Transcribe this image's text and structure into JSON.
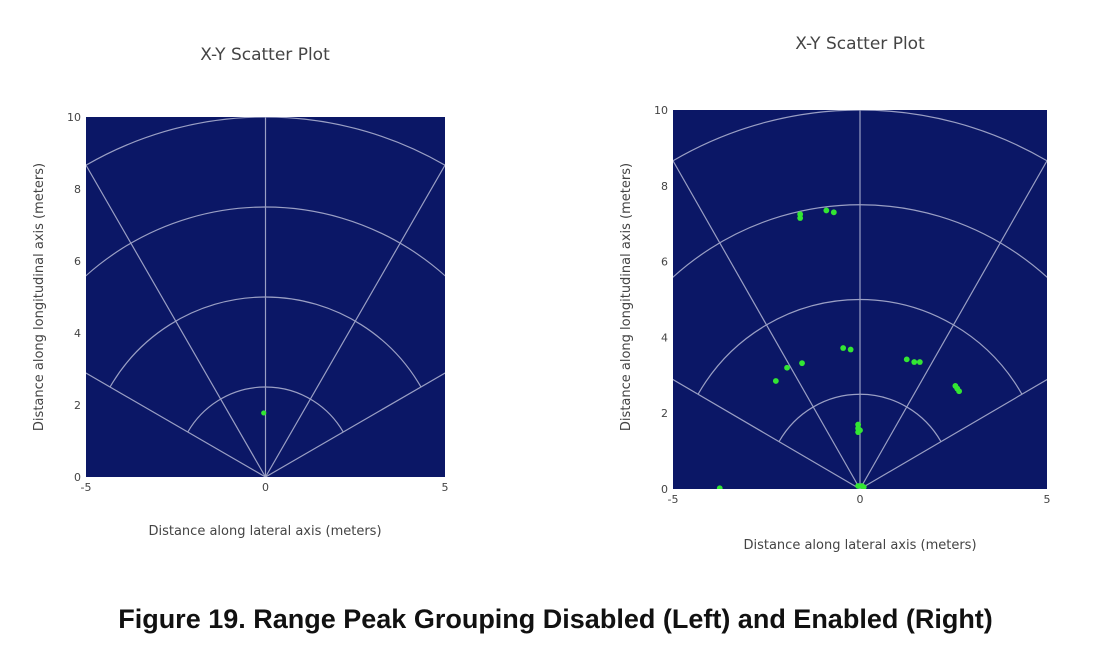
{
  "figure_caption": "Figure 19. Range Peak Grouping Disabled (Left) and Enabled (Right)",
  "colors": {
    "plot_background": "#0b1766",
    "grid": "#9a9fc4",
    "point": "#33e633",
    "text": "#444444"
  },
  "chart_data": [
    {
      "type": "scatter",
      "title": "X-Y Scatter Plot",
      "xlabel": "Distance along lateral axis (meters)",
      "ylabel": "Distance along longitudinal axis (meters)",
      "xlim": [
        -5,
        5
      ],
      "ylim": [
        0,
        10
      ],
      "x_ticks": [
        -5,
        0,
        5
      ],
      "y_ticks": [
        0,
        2,
        4,
        6,
        8,
        10
      ],
      "range_rings": [
        2.5,
        5,
        7.5,
        10
      ],
      "spoke_angles_deg": [
        -60,
        -30,
        0,
        30,
        60
      ],
      "points": [
        {
          "x": -0.05,
          "y": 1.78
        }
      ]
    },
    {
      "type": "scatter",
      "title": "X-Y Scatter Plot",
      "xlabel": "Distance along lateral axis (meters)",
      "ylabel": "Distance along longitudinal axis (meters)",
      "xlim": [
        -5,
        5
      ],
      "ylim": [
        0,
        10
      ],
      "x_ticks": [
        -5,
        0,
        5
      ],
      "y_ticks": [
        0,
        2,
        4,
        6,
        8,
        10
      ],
      "range_rings": [
        2.5,
        5,
        7.5,
        10
      ],
      "spoke_angles_deg": [
        -60,
        -30,
        0,
        30,
        60
      ],
      "points": [
        {
          "x": -1.6,
          "y": 7.25
        },
        {
          "x": -1.6,
          "y": 7.15
        },
        {
          "x": -0.9,
          "y": 7.35
        },
        {
          "x": -0.7,
          "y": 7.3
        },
        {
          "x": -0.45,
          "y": 3.72
        },
        {
          "x": -0.25,
          "y": 3.68
        },
        {
          "x": -1.55,
          "y": 3.32
        },
        {
          "x": -1.95,
          "y": 3.2
        },
        {
          "x": -2.25,
          "y": 2.85
        },
        {
          "x": 1.25,
          "y": 3.42
        },
        {
          "x": 1.45,
          "y": 3.35
        },
        {
          "x": 1.6,
          "y": 3.35
        },
        {
          "x": 2.55,
          "y": 2.72
        },
        {
          "x": 2.6,
          "y": 2.65
        },
        {
          "x": 2.65,
          "y": 2.58
        },
        {
          "x": -0.05,
          "y": 1.7
        },
        {
          "x": -0.05,
          "y": 1.6
        },
        {
          "x": -0.05,
          "y": 1.5
        },
        {
          "x": 0.0,
          "y": 1.55
        },
        {
          "x": -0.05,
          "y": 0.08
        },
        {
          "x": 0.05,
          "y": 0.08
        },
        {
          "x": 0.1,
          "y": 0.05
        },
        {
          "x": -3.75,
          "y": 0.02
        }
      ]
    }
  ]
}
